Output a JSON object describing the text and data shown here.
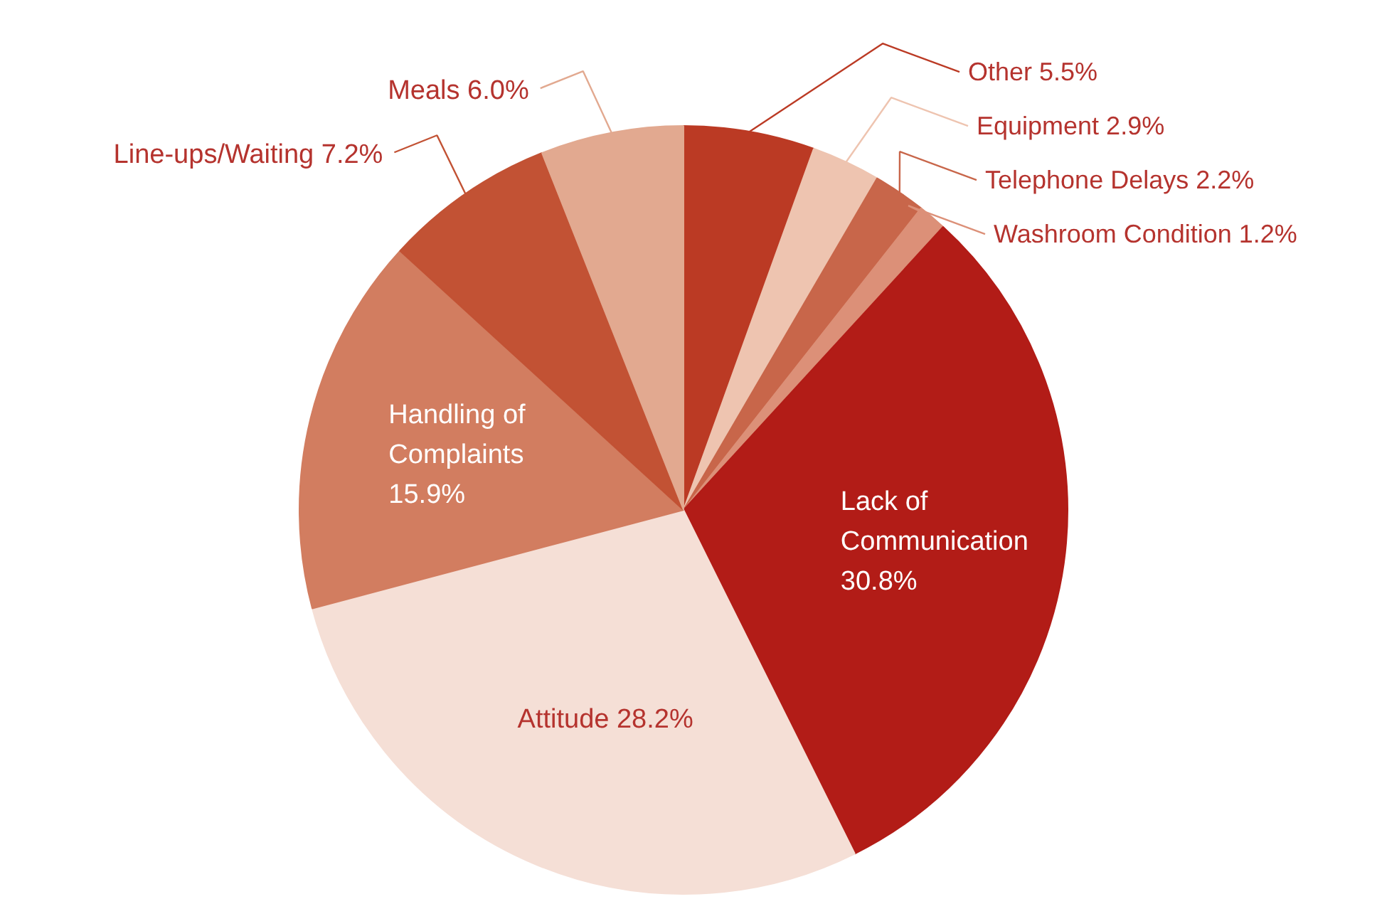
{
  "chart_data": {
    "type": "pie",
    "categories": [
      "Other",
      "Equipment",
      "Telephone Delays",
      "Washroom Condition",
      "Lack of Communication",
      "Attitude",
      "Handling of Complaints",
      "Line-ups/Waiting",
      "Meals"
    ],
    "values": [
      5.5,
      2.9,
      2.2,
      1.2,
      30.8,
      28.2,
      15.9,
      7.2,
      6.0
    ],
    "colors": [
      "#bb3a24",
      "#eec4b0",
      "#c8664a",
      "#dc9078",
      "#b21c17",
      "#f5dfd6",
      "#d27d60",
      "#c25234",
      "#e2a990"
    ],
    "value_labels": [
      "5.5%",
      "2.9%",
      "2.2%",
      "1.2%",
      "30.8%",
      "28.2%",
      "15.9%",
      "7.2%",
      "6.0%"
    ]
  }
}
